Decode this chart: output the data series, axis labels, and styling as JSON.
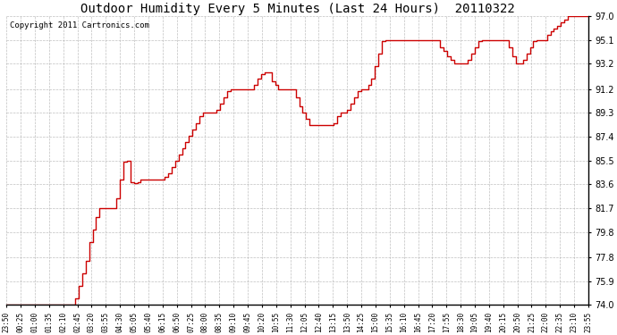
{
  "title": "Outdoor Humidity Every 5 Minutes (Last 24 Hours)  20110322",
  "copyright": "Copyright 2011 Cartronics.com",
  "line_color": "#cc0000",
  "bg_color": "#ffffff",
  "grid_color": "#b0b0b0",
  "ylim": [
    74.0,
    97.0
  ],
  "yticks": [
    74.0,
    75.9,
    77.8,
    79.8,
    81.7,
    83.6,
    85.5,
    87.4,
    89.3,
    91.2,
    93.2,
    95.1,
    97.0
  ],
  "x_labels": [
    "23:50",
    "00:25",
    "01:00",
    "01:35",
    "02:10",
    "02:45",
    "03:20",
    "03:55",
    "04:30",
    "05:05",
    "05:40",
    "06:15",
    "06:50",
    "07:25",
    "08:00",
    "08:35",
    "09:10",
    "09:45",
    "10:20",
    "10:55",
    "11:30",
    "12:05",
    "12:40",
    "13:15",
    "13:50",
    "14:25",
    "15:00",
    "15:35",
    "16:10",
    "16:45",
    "17:20",
    "17:55",
    "18:30",
    "19:05",
    "19:40",
    "20:15",
    "20:50",
    "21:25",
    "22:00",
    "22:35",
    "23:10",
    "23:55"
  ],
  "humidity_data": [
    74.0,
    74.0,
    74.0,
    74.0,
    74.0,
    74.0,
    74.0,
    74.0,
    74.0,
    74.0,
    74.0,
    74.0,
    74.0,
    74.0,
    74.0,
    74.0,
    74.0,
    74.0,
    74.0,
    74.0,
    74.5,
    75.5,
    76.5,
    77.5,
    79.0,
    80.0,
    81.0,
    81.7,
    81.7,
    81.7,
    81.7,
    81.7,
    82.5,
    84.0,
    85.4,
    85.5,
    83.8,
    83.7,
    83.8,
    84.0,
    84.0,
    84.0,
    84.0,
    84.0,
    84.0,
    84.0,
    84.2,
    84.5,
    85.0,
    85.5,
    86.0,
    86.5,
    87.0,
    87.5,
    88.0,
    88.5,
    89.0,
    89.3,
    89.3,
    89.3,
    89.3,
    89.5,
    90.0,
    90.5,
    91.0,
    91.2,
    91.2,
    91.2,
    91.2,
    91.2,
    91.2,
    91.2,
    91.5,
    92.0,
    92.4,
    92.5,
    92.5,
    91.8,
    91.5,
    91.2,
    91.2,
    91.2,
    91.2,
    91.2,
    90.5,
    89.8,
    89.3,
    88.8,
    88.3,
    88.3,
    88.3,
    88.3,
    88.3,
    88.3,
    88.3,
    88.5,
    89.0,
    89.3,
    89.3,
    89.5,
    90.0,
    90.5,
    91.0,
    91.2,
    91.2,
    91.5,
    92.0,
    93.0,
    94.0,
    95.0,
    95.1,
    95.1,
    95.1,
    95.1,
    95.1,
    95.1,
    95.1,
    95.1,
    95.1,
    95.1,
    95.1,
    95.1,
    95.1,
    95.1,
    95.1,
    95.1,
    94.5,
    94.2,
    93.8,
    93.5,
    93.2,
    93.2,
    93.2,
    93.2,
    93.5,
    94.0,
    94.5,
    95.0,
    95.1,
    95.1,
    95.1,
    95.1,
    95.1,
    95.1,
    95.1,
    95.1,
    94.5,
    93.8,
    93.2,
    93.2,
    93.5,
    94.0,
    94.5,
    95.0,
    95.1,
    95.1,
    95.1,
    95.5,
    95.8,
    96.0,
    96.2,
    96.5,
    96.7,
    97.0,
    97.0,
    97.0,
    97.0,
    97.0,
    97.0,
    97.0
  ]
}
